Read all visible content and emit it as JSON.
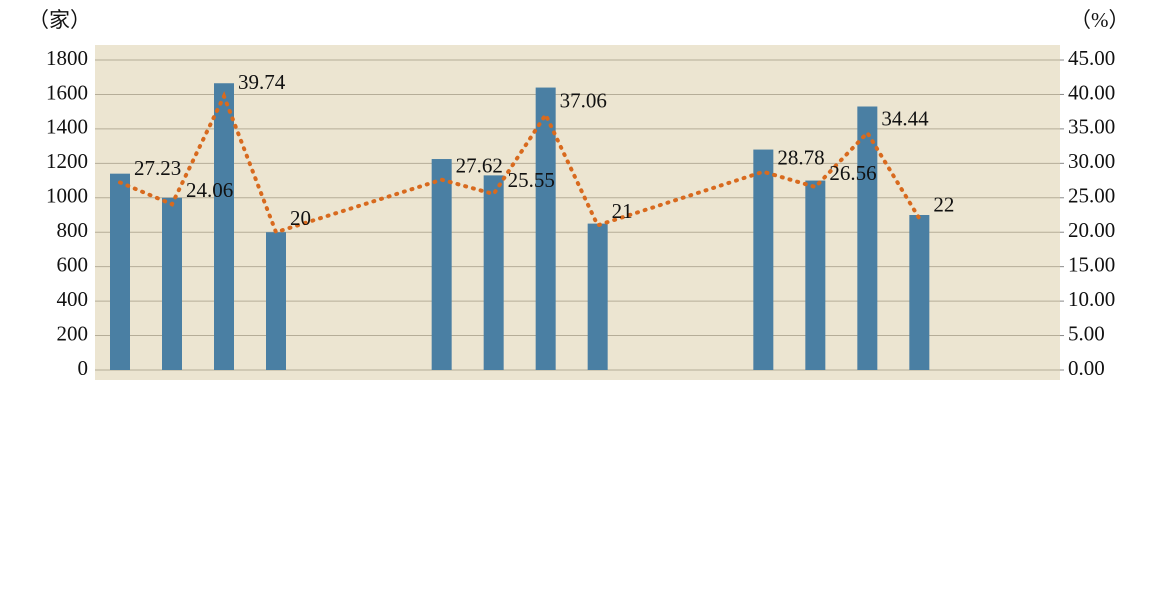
{
  "chart_data": {
    "type": "bar-line",
    "y_unit": "（家）",
    "y2_unit": "（%）",
    "categories": [
      null,
      null,
      null,
      null,
      null,
      null,
      null,
      null,
      null,
      null,
      null,
      null
    ],
    "series": [
      {
        "type": "bar",
        "color": "#4a7fa3",
        "values": [
          1140,
          1000,
          1665,
          800,
          1225,
          1130,
          1640,
          850,
          1280,
          1100,
          1530,
          900
        ]
      },
      {
        "type": "line",
        "axis": "y2",
        "color": "#d86a1e",
        "values": [
          27.23,
          24.06,
          39.74,
          20,
          27.62,
          25.55,
          37.06,
          21,
          28.78,
          26.56,
          34.44,
          22
        ]
      }
    ],
    "ylim": [
      0,
      1800
    ],
    "yticks": [
      0,
      200,
      400,
      600,
      800,
      1000,
      1200,
      1400,
      1600,
      1800
    ],
    "y2lim": [
      0,
      45
    ],
    "y2ticks": [
      {
        "value": 0,
        "label": "0.00"
      },
      {
        "value": 5,
        "label": "5.00"
      },
      {
        "value": 10,
        "label": "10.00"
      },
      {
        "value": 15,
        "label": "15.00"
      },
      {
        "value": 20,
        "label": "20.00"
      },
      {
        "value": 25,
        "label": "25.00"
      },
      {
        "value": 30,
        "label": "30.00"
      },
      {
        "value": 35,
        "label": "35.00"
      },
      {
        "value": 40,
        "label": "40.00"
      },
      {
        "value": 45,
        "label": "45.00"
      }
    ],
    "grid": true
  }
}
